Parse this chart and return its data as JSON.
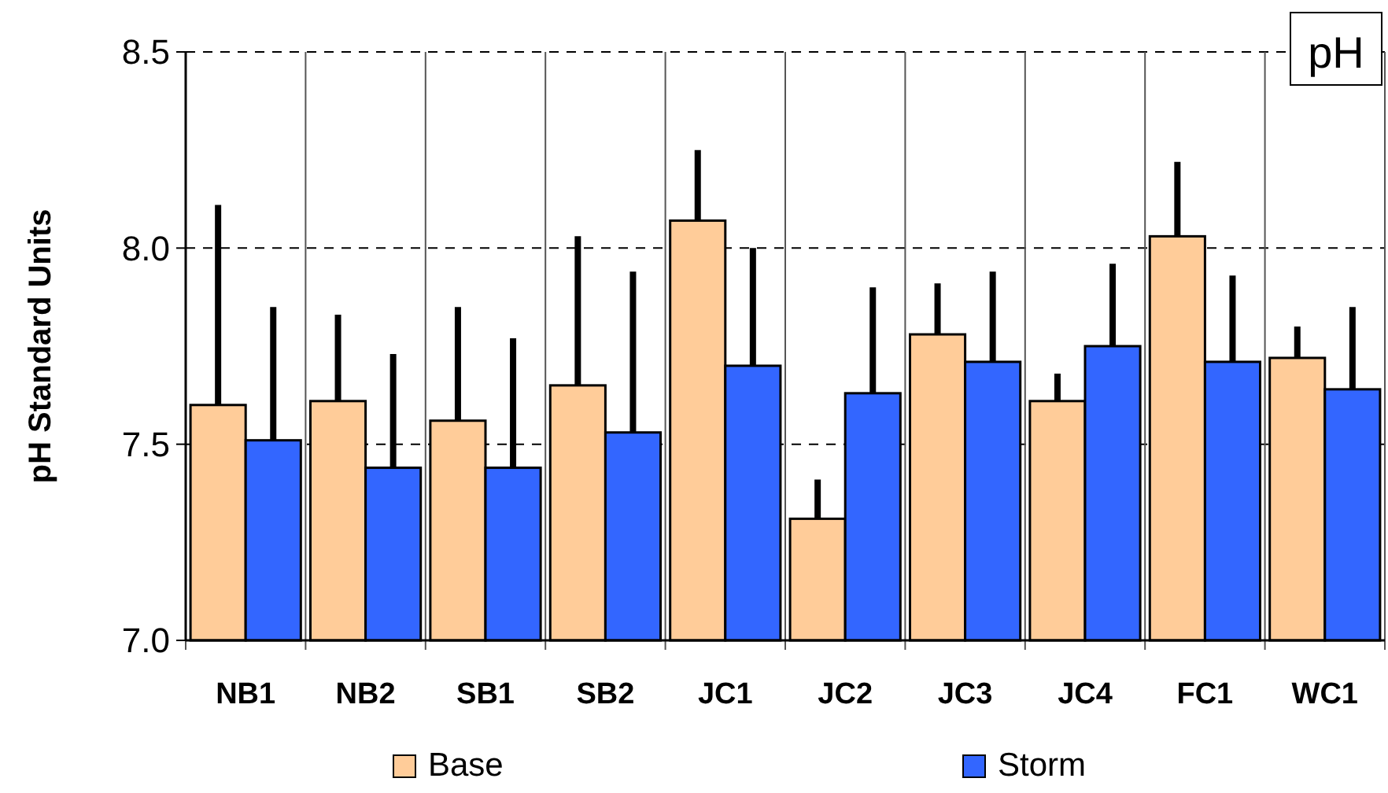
{
  "chart_data": {
    "type": "bar",
    "ylabel": "pH Standard Units",
    "annotations": [
      "pH"
    ],
    "categories": [
      "NB1",
      "NB2",
      "SB1",
      "SB2",
      "JC1",
      "JC2",
      "JC3",
      "JC4",
      "FC1",
      "WC1"
    ],
    "series": [
      {
        "name": "Base",
        "color": "#ffcc99",
        "values": [
          7.6,
          7.61,
          7.56,
          7.65,
          8.07,
          7.31,
          7.78,
          7.61,
          8.03,
          7.72
        ],
        "errors": [
          [
            7.6,
            8.11
          ],
          [
            7.61,
            7.83
          ],
          [
            7.56,
            7.85
          ],
          [
            7.65,
            8.03
          ],
          [
            8.07,
            8.25
          ],
          [
            7.31,
            7.41
          ],
          [
            7.78,
            7.91
          ],
          [
            7.61,
            7.68
          ],
          [
            8.03,
            8.22
          ],
          [
            7.72,
            7.8
          ]
        ]
      },
      {
        "name": "Storm",
        "color": "#3366ff",
        "values": [
          7.51,
          7.44,
          7.44,
          7.53,
          7.7,
          7.63,
          7.71,
          7.75,
          7.71,
          7.64
        ],
        "errors": [
          [
            7.51,
            7.85
          ],
          [
            7.44,
            7.73
          ],
          [
            7.44,
            7.77
          ],
          [
            7.53,
            7.94
          ],
          [
            7.7,
            8.0
          ],
          [
            7.63,
            7.9
          ],
          [
            7.71,
            7.94
          ],
          [
            7.75,
            7.96
          ],
          [
            7.71,
            7.93
          ],
          [
            7.64,
            7.85
          ]
        ]
      }
    ],
    "ylim": [
      7.0,
      8.5
    ],
    "yticks": [
      {
        "value": 7.0,
        "label": "7.0"
      },
      {
        "value": 7.5,
        "label": "7.5"
      },
      {
        "value": 8.0,
        "label": "8.0"
      },
      {
        "value": 8.5,
        "label": "8.5"
      }
    ],
    "grid": true,
    "legend": "bottom"
  }
}
